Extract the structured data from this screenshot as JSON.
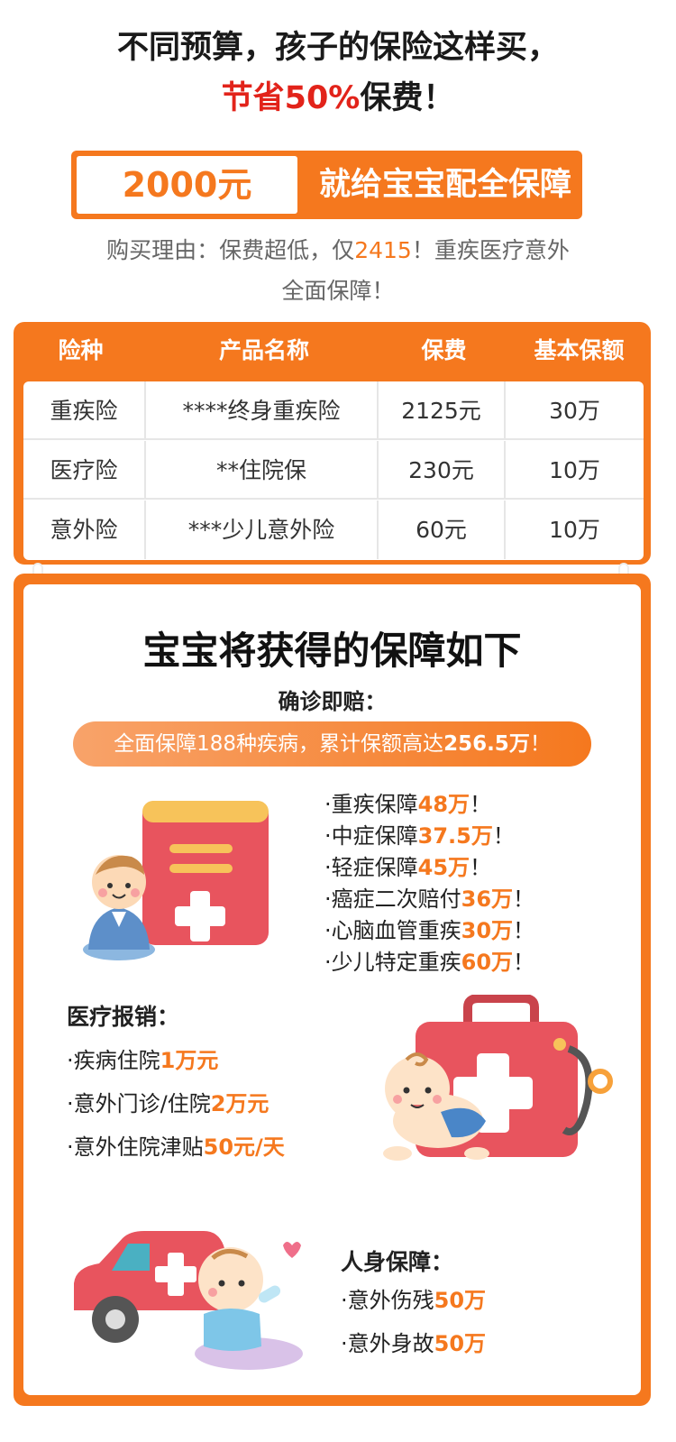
{
  "headline": {
    "line1": "不同预算，孩子的保险这样买，",
    "line2_prefix": "节省50%",
    "line2_suffix": "保费！"
  },
  "banner": {
    "amount": "2000元",
    "text": "就给宝宝配全保障"
  },
  "reason": {
    "prefix": "购买理由：保费超低，仅",
    "price": "2415",
    "suffix": "！重疾医疗意外",
    "line2": "全面保障！"
  },
  "table": {
    "headers": [
      "险种",
      "产品名称",
      "保费",
      "基本保额"
    ],
    "rows": [
      [
        "重疾险",
        "****终身重疾险",
        "2125元",
        "30万"
      ],
      [
        "医疗险",
        "**住院保",
        "230元",
        "10万"
      ],
      [
        "意外险",
        "***少儿意外险",
        "60元",
        "10万"
      ]
    ]
  },
  "benefits": {
    "title": "宝宝将获得的保障如下",
    "diagnosis_label": "确诊即赔：",
    "pill_prefix": "全面保障188种疾病，累计保额高达",
    "pill_amount": "256.5万",
    "pill_suffix": "！",
    "critical_items": [
      {
        "label": "·重疾保障",
        "value": "48万",
        "end": "！"
      },
      {
        "label": "·中症保障",
        "value": "37.5万",
        "end": "！"
      },
      {
        "label": "·轻症保障",
        "value": "45万",
        "end": "！"
      },
      {
        "label": "·癌症二次赔付",
        "value": "36万",
        "end": "！"
      },
      {
        "label": "·心脑血管重疾",
        "value": "30万",
        "end": "！"
      },
      {
        "label": "·少儿特定重疾",
        "value": "60万",
        "end": "！"
      }
    ],
    "medical_label": "医疗报销：",
    "medical_items": [
      {
        "label": "·疾病住院",
        "value": "1万元"
      },
      {
        "label": "·意外门诊/住院",
        "value": "2万元"
      },
      {
        "label": "·意外住院津贴",
        "value": "50元/天"
      }
    ],
    "personal_label": "人身保障：",
    "personal_items": [
      {
        "label": "·意外伤残",
        "value": "50万"
      },
      {
        "label": "·意外身故",
        "value": "50万"
      }
    ]
  },
  "icons": {
    "illustration_1": "baby-with-medical-book-icon",
    "illustration_2": "baby-with-first-aid-kit-icon",
    "illustration_3": "baby-with-car-icon"
  },
  "colors": {
    "accent": "#f5781e",
    "highlight_red": "#e2231a"
  }
}
